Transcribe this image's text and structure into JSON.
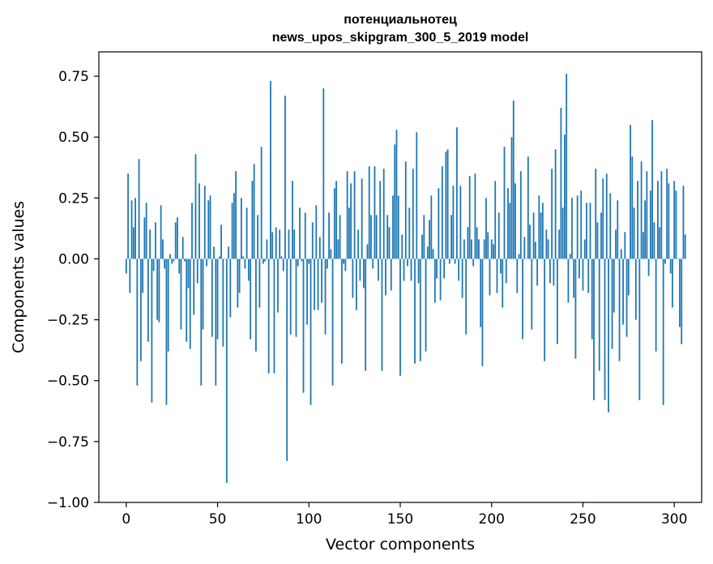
{
  "chart_data": {
    "type": "bar",
    "title_line1": "потенциальнотец",
    "title_line2": "news_upos_skipgram_300_5_2019 model",
    "xlabel": "Vector components",
    "ylabel": "Components values",
    "xlim": [
      -15,
      315
    ],
    "ylim": [
      -1.0,
      0.85
    ],
    "xticks": [
      0,
      50,
      100,
      150,
      200,
      250,
      300
    ],
    "xtick_labels": [
      "0",
      "50",
      "100",
      "150",
      "200",
      "250",
      "300"
    ],
    "yticks": [
      0.75,
      0.5,
      0.25,
      0.0,
      -0.25,
      -0.5,
      -0.75,
      -1.0
    ],
    "ytick_labels": [
      "0.75",
      "0.50",
      "0.25",
      "0.00",
      "−0.25",
      "−0.50",
      "−0.75",
      "−1.00"
    ],
    "grid": false,
    "bar_color": "#1f77b4",
    "values": [
      -0.06,
      0.35,
      -0.14,
      0.24,
      0.13,
      0.25,
      -0.52,
      0.41,
      -0.42,
      -0.14,
      0.17,
      0.23,
      -0.34,
      0.12,
      -0.59,
      -0.05,
      0.15,
      -0.25,
      -0.26,
      0.22,
      0.08,
      -0.04,
      -0.6,
      -0.38,
      0.02,
      -0.02,
      -0.01,
      0.15,
      0.17,
      -0.06,
      -0.29,
      0.09,
      -0.01,
      -0.34,
      -0.12,
      -0.37,
      0.23,
      -0.23,
      0.43,
      -0.1,
      0.31,
      -0.52,
      -0.29,
      0.3,
      -0.03,
      0.24,
      0.26,
      -0.32,
      0.05,
      -0.52,
      -0.33,
      0.01,
      0.14,
      -0.36,
      0.0,
      -0.92,
      0.05,
      -0.24,
      0.23,
      0.27,
      0.36,
      -0.2,
      -0.14,
      0.25,
      0.01,
      -0.04,
      0.21,
      -0.09,
      -0.33,
      0.32,
      0.39,
      -0.38,
      0.18,
      -0.2,
      0.46,
      -0.02,
      -0.01,
      0.08,
      -0.47,
      0.73,
      0.11,
      -0.47,
      0.13,
      -0.22,
      0.12,
      0.01,
      -0.05,
      0.67,
      -0.83,
      0.12,
      -0.31,
      0.32,
      0.12,
      -0.32,
      -0.03,
      0.21,
      -0.01,
      -0.55,
      0.19,
      -0.27,
      -0.02,
      -0.6,
      0.15,
      -0.21,
      0.22,
      -0.21,
      0.09,
      -0.18,
      0.7,
      -0.31,
      -0.04,
      0.19,
      0.04,
      -0.52,
      0.29,
      0.32,
      0.08,
      0.18,
      -0.43,
      -0.02,
      -0.05,
      0.36,
      0.21,
      0.31,
      -0.16,
      0.36,
      -0.21,
      0.12,
      -0.09,
      0.33,
      -0.12,
      -0.46,
      0.06,
      0.38,
      0.18,
      -0.04,
      0.38,
      0.18,
      -0.09,
      0.32,
      -0.46,
      0.37,
      -0.15,
      0.18,
      0.13,
      -0.13,
      0.26,
      0.47,
      0.53,
      0.26,
      -0.48,
      0.1,
      -0.09,
      0.4,
      -0.03,
      0.21,
      -0.09,
      0.37,
      -0.43,
      0.52,
      -0.1,
      -0.42,
      0.1,
      0.18,
      -0.38,
      0.05,
      0.16,
      0.26,
      0.04,
      -0.18,
      -0.08,
      0.29,
      -0.17,
      0.38,
      -0.08,
      0.44,
      0.45,
      -0.02,
      0.18,
      0.3,
      -0.02,
      0.54,
      -0.09,
      0.3,
      -0.16,
      0.08,
      -0.31,
      0.13,
      0.34,
      0.08,
      -0.03,
      0.35,
      0.13,
      0.08,
      -0.28,
      -0.44,
      0.08,
      0.25,
      0.11,
      -0.15,
      0.08,
      0.06,
      0.32,
      -0.14,
      0.19,
      -0.06,
      -0.2,
      0.46,
      -0.1,
      0.29,
      0.23,
      0.5,
      0.65,
      0.31,
      -0.14,
      0.02,
      0.36,
      -0.33,
      0.09,
      0.0,
      0.42,
      0.14,
      -0.29,
      0.19,
      0.07,
      -0.11,
      0.26,
      0.19,
      0.23,
      -0.42,
      0.12,
      0.08,
      -0.1,
      0.37,
      -0.11,
      0.45,
      -0.35,
      0.12,
      0.62,
      0.21,
      0.51,
      0.76,
      -0.18,
      0.02,
      0.25,
      -0.16,
      -0.41,
      0.26,
      -0.08,
      0.28,
      -0.13,
      0.08,
      0.23,
      -0.14,
      0.23,
      -0.33,
      -0.58,
      0.37,
      0.15,
      -0.46,
      0.19,
      0.33,
      -0.58,
      0.35,
      -0.63,
      0.27,
      -0.37,
      -0.22,
      0.12,
      0.24,
      -0.42,
      0.04,
      -0.27,
      0.11,
      -0.32,
      -0.15,
      0.55,
      0.42,
      0.21,
      -0.25,
      0.32,
      -0.58,
      0.4,
      0.11,
      0.24,
      0.36,
      -0.07,
      0.28,
      0.57,
      0.15,
      -0.38,
      0.32,
      0.13,
      0.36,
      -0.6,
      -0.02,
      0.37,
      0.31,
      -0.06,
      -0.2,
      0.32,
      0.28,
      0.0,
      -0.28,
      -0.35,
      0.3,
      0.1
    ]
  }
}
